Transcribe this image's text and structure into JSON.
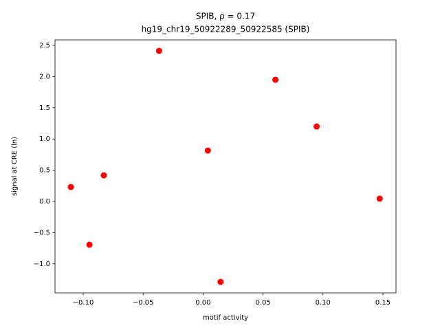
{
  "chart_data": {
    "type": "scatter",
    "title": "SPIB, ρ = 0.17",
    "subtitle": "hg19_chr19_50922289_50922585 (SPIB)",
    "x_label": "motif activity",
    "y_label": "signal at CRE (ln)",
    "color": "#ff0000",
    "series": [
      {
        "x": [
          -0.1103,
          -0.0948,
          -0.0828,
          -0.0367,
          0.004,
          0.0146,
          0.0603,
          0.0947,
          0.1473
        ],
        "values": [
          0.231,
          -0.694,
          0.418,
          2.412,
          0.815,
          -1.289,
          1.949,
          1.2,
          0.044
        ]
      }
    ],
    "xlim": [
      -0.1235,
      0.1609
    ],
    "ylim": [
      -1.465,
      2.588
    ],
    "xticks": [
      {
        "value": -0.1,
        "label": "−0.10"
      },
      {
        "value": -0.05,
        "label": "−0.05"
      },
      {
        "value": 0,
        "label": "0.00"
      },
      {
        "value": 0.05,
        "label": "0.05"
      },
      {
        "value": 0.1,
        "label": "0.10"
      },
      {
        "value": 0.15,
        "label": "0.15"
      }
    ],
    "yticks": [
      {
        "value": -1,
        "label": "−1.0"
      },
      {
        "value": -0.5,
        "label": "−0.5"
      },
      {
        "value": 0,
        "label": "0.0"
      },
      0.5,
      {
        "value": 1,
        "label": "1.0"
      },
      1.5,
      {
        "value": 2,
        "label": "2.0"
      },
      2.5
    ]
  }
}
